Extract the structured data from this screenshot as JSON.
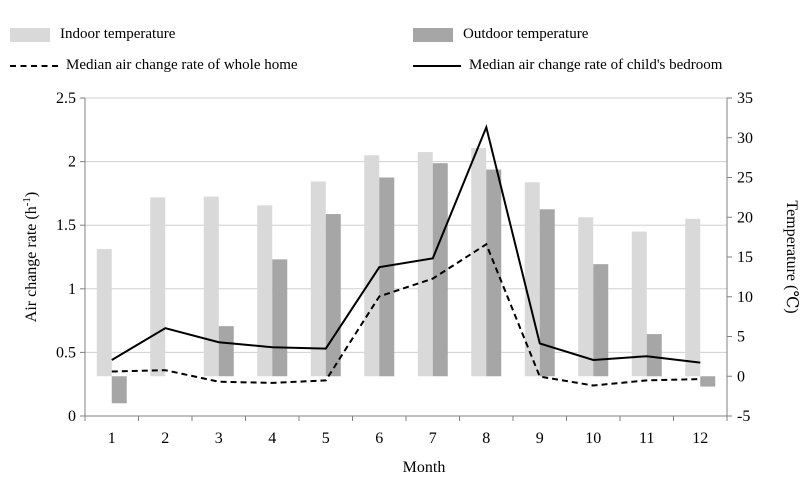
{
  "colors": {
    "indoor": "#d9d9d9",
    "outdoor": "#a6a6a6",
    "line": "#000000",
    "grid": "#d0d0d0"
  },
  "legend": {
    "indoor": "Indoor temperature",
    "outdoor": "Outdoor temperature",
    "whole": "Median air change rate of whole home",
    "bedroom": "Median air change rate of child's bedroom"
  },
  "chart_data": {
    "type": "bar",
    "title": "",
    "xlabel": "Month",
    "ylabel_main": "Air change rate",
    "ylabel_unit": "h",
    "ylabel_sup": "-1",
    "y2label": "Temperature (℃)",
    "categories": [
      "1",
      "2",
      "3",
      "4",
      "5",
      "6",
      "7",
      "8",
      "9",
      "10",
      "11",
      "12"
    ],
    "y_left_range": [
      0,
      2.5
    ],
    "y_left_ticks": [
      "0",
      "0.5",
      "1",
      "1.5",
      "2",
      "2.5"
    ],
    "y_right_range": [
      -5,
      35
    ],
    "y_right_ticks": [
      "-5",
      "0",
      "5",
      "10",
      "15",
      "20",
      "25",
      "30",
      "35"
    ],
    "bar_series": [
      {
        "name": "Indoor temperature",
        "axis": "right",
        "values": [
          16.0,
          22.5,
          22.6,
          21.5,
          24.5,
          27.8,
          28.2,
          28.7,
          24.4,
          20.0,
          18.2,
          19.8
        ]
      },
      {
        "name": "Outdoor temperature",
        "axis": "right",
        "values": [
          -3.4,
          0.0,
          6.3,
          14.7,
          20.4,
          25.0,
          26.8,
          26.0,
          21.0,
          14.1,
          5.3,
          -1.3
        ]
      }
    ],
    "line_series": [
      {
        "name": "Median air change rate of whole home",
        "axis": "left",
        "style": "dashed",
        "values": [
          0.35,
          0.36,
          0.27,
          0.26,
          0.28,
          0.94,
          1.08,
          1.35,
          0.31,
          0.24,
          0.28,
          0.29
        ]
      },
      {
        "name": "Median air change rate of child's bedroom",
        "axis": "left",
        "style": "solid",
        "values": [
          0.44,
          0.69,
          0.58,
          0.54,
          0.53,
          1.17,
          1.24,
          2.27,
          0.57,
          0.44,
          0.47,
          0.42
        ]
      }
    ]
  }
}
